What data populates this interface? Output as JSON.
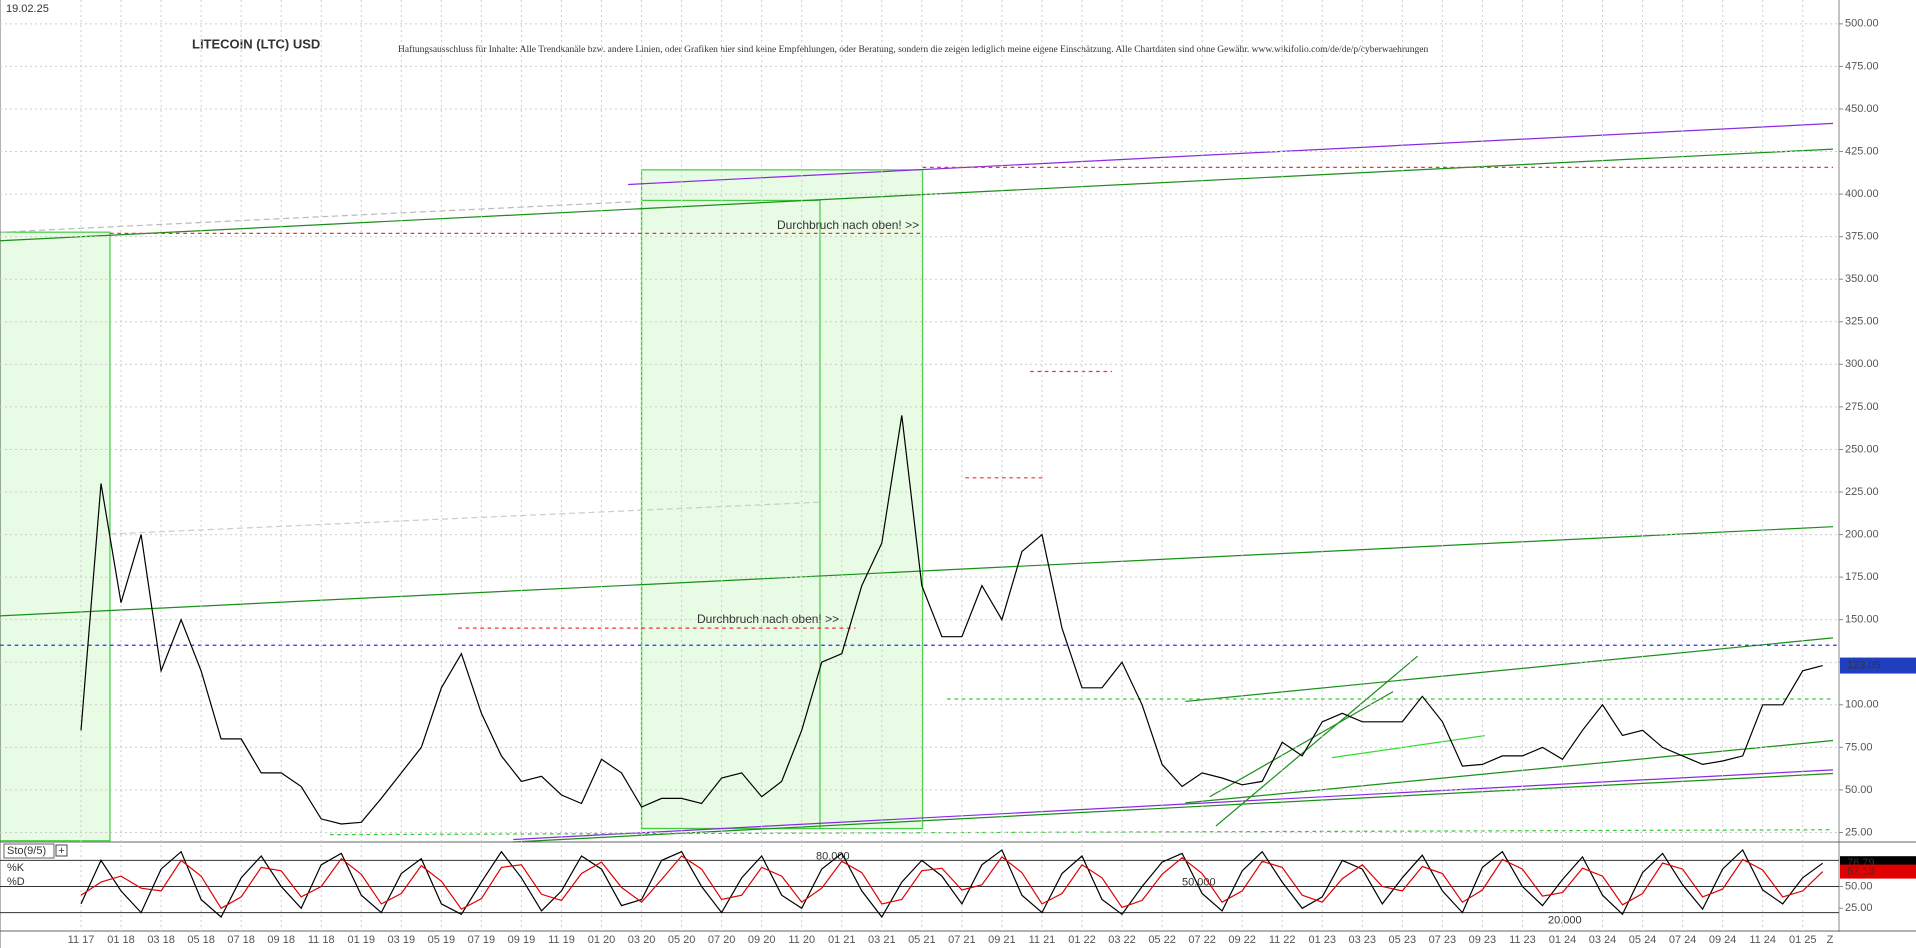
{
  "chart_data": [
    {
      "type": "line",
      "date": "19.02.25",
      "title": "LITECOIN (LTC) USD",
      "subtitle": "Haftungsausschluss für Inhalte: Alle Trendkanäle bzw. andere Linien, oder Grafiken hier sind keine Empfehlungen, oder Beratung, sondern die zeigen lediglich meine eigene Einschätzung. Alle Chartdaten sind ohne Gewähr. www.wikifolio.com/de/de/p/cyberwaehrungen",
      "annotations": [
        "Durchbruch nach oben! >>",
        "Durchbruch nach oben! >>"
      ],
      "categories": [
        "11 17",
        null,
        "01 18",
        null,
        "03 18",
        null,
        "05 18",
        null,
        "07 18",
        null,
        "09 18",
        null,
        "11 18",
        null,
        "01 19",
        null,
        "03 19",
        null,
        "05 19",
        null,
        "07 19",
        null,
        "09 19",
        null,
        "11 19",
        null,
        "01 20",
        null,
        "03 20",
        null,
        "05 20",
        null,
        "07 20",
        null,
        "09 20",
        null,
        "11 20",
        null,
        "01 21",
        null,
        "03 21",
        null,
        "05 21",
        null,
        "07 21",
        null,
        "09 21",
        null,
        "11 21",
        null,
        "01 22",
        null,
        "03 22",
        null,
        "05 22",
        null,
        "07 22",
        null,
        "09 22",
        null,
        "11 22",
        null,
        "01 23",
        null,
        "03 23",
        null,
        "05 23",
        null,
        "07 23",
        null,
        "09 23",
        null,
        "11 23",
        null,
        "01 24",
        null,
        "03 24",
        null,
        "05 24",
        null,
        "07 24",
        null,
        "09 24",
        null,
        "11 24",
        null,
        "01 25",
        null
      ],
      "x_end_label": "Z",
      "values": [
        85,
        230,
        160,
        200,
        120,
        150,
        120,
        80,
        80,
        60,
        60,
        52,
        33,
        30,
        31,
        45,
        60,
        75,
        110,
        130,
        95,
        70,
        55,
        58,
        47,
        42,
        68,
        60,
        40,
        45,
        45,
        42,
        57,
        60,
        46,
        55,
        85,
        125,
        130,
        170,
        195,
        270,
        170,
        140,
        140,
        170,
        150,
        190,
        200,
        145,
        110,
        110,
        125,
        100,
        65,
        52,
        60,
        57,
        53,
        55,
        78,
        70,
        90,
        95,
        90,
        90,
        90,
        105,
        90,
        64,
        65,
        70,
        70,
        75,
        68,
        85,
        100,
        82,
        85,
        75,
        70,
        65,
        67,
        70,
        100,
        100,
        120,
        123.05
      ],
      "color": "#000000",
      "last_color": "#1f3fbf",
      "ylim": [
        20,
        514
      ],
      "yticks": [
        {
          "value": 25,
          "label": "25.00"
        },
        {
          "value": 50,
          "label": "50.00"
        },
        {
          "value": 75,
          "label": "75.00"
        },
        {
          "value": 100,
          "label": "100.00"
        },
        {
          "value": 125,
          "label": "125.00"
        },
        {
          "value": 150,
          "label": "150.00"
        },
        {
          "value": 175,
          "label": "175.00"
        },
        {
          "value": 200,
          "label": "200.00"
        },
        {
          "value": 225,
          "label": "225.00"
        },
        {
          "value": 250,
          "label": "250.00"
        },
        {
          "value": 275,
          "label": "275.00"
        },
        {
          "value": 300,
          "label": "300.00"
        },
        {
          "value": 325,
          "label": "325.00"
        },
        {
          "value": 350,
          "label": "350.00"
        },
        {
          "value": 375,
          "label": "375.00"
        },
        {
          "value": 400,
          "label": "400.00"
        },
        {
          "value": 425,
          "label": "425.00"
        },
        {
          "value": 450,
          "label": "450.00"
        },
        {
          "value": 475,
          "label": "475.00"
        },
        {
          "value": 500,
          "label": "500.00"
        }
      ],
      "grid": true
    },
    {
      "type": "line",
      "title": "Sto(9/5)",
      "series": [
        {
          "name": "%K",
          "color": "#000000",
          "values": [
            30,
            80,
            45,
            20,
            70,
            90,
            35,
            15,
            60,
            85,
            50,
            25,
            75,
            88,
            40,
            20,
            65,
            82,
            30,
            18,
            55,
            90,
            60,
            22,
            45,
            85,
            70,
            28,
            35,
            80,
            90,
            50,
            20,
            60,
            85,
            40,
            25,
            70,
            88,
            45,
            15,
            55,
            80,
            62,
            30,
            75,
            92,
            40,
            20,
            65,
            85,
            35,
            18,
            50,
            78,
            88,
            42,
            22,
            68,
            90,
            55,
            25,
            38,
            80,
            70,
            30,
            60,
            86,
            45,
            20,
            72,
            90,
            50,
            28,
            58,
            84,
            40,
            18,
            66,
            88,
            52,
            24,
            70,
            92,
            46,
            30,
            60,
            76.79
          ]
        },
        {
          "name": "%D",
          "color": "#e00000",
          "values": [
            40,
            55,
            62,
            48,
            45,
            80,
            62,
            25,
            38,
            72,
            68,
            38,
            50,
            82,
            64,
            30,
            42,
            74,
            56,
            24,
            36,
            72,
            75,
            41,
            34,
            65,
            78,
            49,
            32,
            58,
            85,
            70,
            35,
            40,
            72,
            62,
            32,
            48,
            79,
            66,
            30,
            35,
            68,
            71,
            46,
            52,
            84,
            66,
            30,
            42,
            75,
            60,
            26,
            34,
            64,
            83,
            65,
            32,
            45,
            79,
            72,
            40,
            32,
            59,
            75,
            50,
            45,
            73,
            65,
            32,
            46,
            81,
            70,
            39,
            43,
            71,
            62,
            29,
            42,
            77,
            70,
            38,
            47,
            81,
            69,
            38,
            45,
            67.13
          ]
        }
      ],
      "ylim": [
        0,
        100
      ],
      "yticks": [
        {
          "value": 25,
          "label": "25.00"
        },
        {
          "value": 50,
          "label": "50.00"
        }
      ],
      "levels": [
        {
          "value": 80,
          "label": "80.000"
        },
        {
          "value": 50,
          "label": "50.000"
        },
        {
          "value": 20,
          "label": "20.000"
        }
      ]
    }
  ]
}
